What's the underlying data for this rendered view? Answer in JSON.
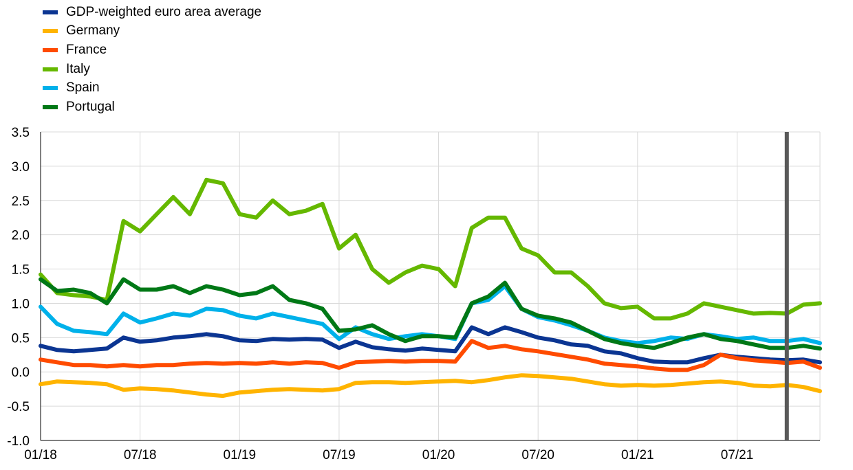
{
  "chart_data": {
    "type": "line",
    "title": "",
    "xlabel": "",
    "ylabel": "",
    "x_tick_labels": [
      "01/18",
      "07/18",
      "01/19",
      "07/19",
      "01/20",
      "07/20",
      "01/21",
      "07/21"
    ],
    "x_tick_dates": [
      "2018-01",
      "2018-07",
      "2019-01",
      "2019-07",
      "2020-01",
      "2020-07",
      "2021-01",
      "2021-07"
    ],
    "xlim": [
      "2018-01",
      "2021-12"
    ],
    "ylim": [
      -1.0,
      3.5
    ],
    "y_ticks": [
      "-1.0",
      "-0.5",
      "0.0",
      "0.5",
      "1.0",
      "1.5",
      "2.0",
      "2.5",
      "3.0",
      "3.5"
    ],
    "grid": true,
    "legend_position": "top-left",
    "vertical_marker_date": "2021-10",
    "x": [
      "2018-01",
      "2018-02",
      "2018-03",
      "2018-04",
      "2018-05",
      "2018-06",
      "2018-07",
      "2018-08",
      "2018-09",
      "2018-10",
      "2018-11",
      "2018-12",
      "2019-01",
      "2019-02",
      "2019-03",
      "2019-04",
      "2019-05",
      "2019-06",
      "2019-07",
      "2019-08",
      "2019-09",
      "2019-10",
      "2019-11",
      "2019-12",
      "2020-01",
      "2020-02",
      "2020-03",
      "2020-04",
      "2020-05",
      "2020-06",
      "2020-07",
      "2020-08",
      "2020-09",
      "2020-10",
      "2020-11",
      "2020-12",
      "2021-01",
      "2021-02",
      "2021-03",
      "2021-04",
      "2021-05",
      "2021-06",
      "2021-07",
      "2021-08",
      "2021-09",
      "2021-10",
      "2021-11",
      "2021-12"
    ],
    "series": [
      {
        "name": "GDP-weighted euro area average",
        "color": "#0b3592",
        "values": [
          0.38,
          0.32,
          0.3,
          0.32,
          0.34,
          0.5,
          0.44,
          0.46,
          0.5,
          0.52,
          0.55,
          0.52,
          0.46,
          0.45,
          0.48,
          0.47,
          0.48,
          0.47,
          0.35,
          0.44,
          0.36,
          0.33,
          0.31,
          0.34,
          0.32,
          0.3,
          0.65,
          0.55,
          0.65,
          0.58,
          0.5,
          0.46,
          0.4,
          0.38,
          0.3,
          0.27,
          0.2,
          0.15,
          0.14,
          0.14,
          0.2,
          0.25,
          0.22,
          0.2,
          0.18,
          0.17,
          0.18,
          0.14
        ]
      },
      {
        "name": "Germany",
        "color": "#ffb400",
        "values": [
          -0.18,
          -0.14,
          -0.15,
          -0.16,
          -0.18,
          -0.26,
          -0.24,
          -0.25,
          -0.27,
          -0.3,
          -0.33,
          -0.35,
          -0.3,
          -0.28,
          -0.26,
          -0.25,
          -0.26,
          -0.27,
          -0.25,
          -0.16,
          -0.15,
          -0.15,
          -0.16,
          -0.15,
          -0.14,
          -0.13,
          -0.15,
          -0.12,
          -0.08,
          -0.05,
          -0.06,
          -0.08,
          -0.1,
          -0.14,
          -0.18,
          -0.2,
          -0.19,
          -0.2,
          -0.19,
          -0.17,
          -0.15,
          -0.14,
          -0.16,
          -0.2,
          -0.21,
          -0.19,
          -0.22,
          -0.28
        ]
      },
      {
        "name": "France",
        "color": "#ff4b00",
        "values": [
          0.18,
          0.14,
          0.1,
          0.1,
          0.08,
          0.1,
          0.08,
          0.1,
          0.1,
          0.12,
          0.13,
          0.12,
          0.13,
          0.12,
          0.14,
          0.12,
          0.14,
          0.13,
          0.06,
          0.14,
          0.15,
          0.16,
          0.15,
          0.16,
          0.16,
          0.15,
          0.45,
          0.35,
          0.38,
          0.33,
          0.3,
          0.26,
          0.22,
          0.18,
          0.12,
          0.1,
          0.08,
          0.05,
          0.03,
          0.03,
          0.1,
          0.25,
          0.2,
          0.17,
          0.15,
          0.13,
          0.15,
          0.06
        ]
      },
      {
        "name": "Italy",
        "color": "#65b800",
        "values": [
          1.42,
          1.15,
          1.12,
          1.1,
          1.05,
          2.2,
          2.05,
          2.3,
          2.55,
          2.3,
          2.8,
          2.75,
          2.3,
          2.25,
          2.5,
          2.3,
          2.35,
          2.45,
          1.8,
          2.0,
          1.5,
          1.3,
          1.45,
          1.55,
          1.5,
          1.25,
          2.1,
          2.25,
          2.25,
          1.8,
          1.7,
          1.45,
          1.45,
          1.25,
          1.0,
          0.93,
          0.95,
          0.78,
          0.78,
          0.85,
          1.0,
          0.95,
          0.9,
          0.85,
          0.86,
          0.85,
          0.98,
          1.0
        ]
      },
      {
        "name": "Spain",
        "color": "#00b1ea",
        "values": [
          0.95,
          0.7,
          0.6,
          0.58,
          0.55,
          0.85,
          0.72,
          0.78,
          0.85,
          0.82,
          0.92,
          0.9,
          0.82,
          0.78,
          0.85,
          0.8,
          0.75,
          0.7,
          0.48,
          0.65,
          0.55,
          0.48,
          0.52,
          0.55,
          0.52,
          0.48,
          1.0,
          1.05,
          1.25,
          0.92,
          0.8,
          0.75,
          0.68,
          0.6,
          0.5,
          0.45,
          0.42,
          0.45,
          0.5,
          0.48,
          0.55,
          0.52,
          0.48,
          0.5,
          0.45,
          0.45,
          0.48,
          0.42
        ]
      },
      {
        "name": "Portugal",
        "color": "#007816",
        "values": [
          1.35,
          1.18,
          1.2,
          1.15,
          1.0,
          1.35,
          1.2,
          1.2,
          1.25,
          1.15,
          1.25,
          1.2,
          1.12,
          1.15,
          1.25,
          1.05,
          1.0,
          0.92,
          0.6,
          0.62,
          0.68,
          0.55,
          0.45,
          0.52,
          0.52,
          0.5,
          1.0,
          1.1,
          1.3,
          0.92,
          0.82,
          0.78,
          0.72,
          0.6,
          0.48,
          0.42,
          0.38,
          0.35,
          0.42,
          0.5,
          0.55,
          0.48,
          0.45,
          0.4,
          0.35,
          0.35,
          0.38,
          0.34
        ]
      }
    ]
  }
}
